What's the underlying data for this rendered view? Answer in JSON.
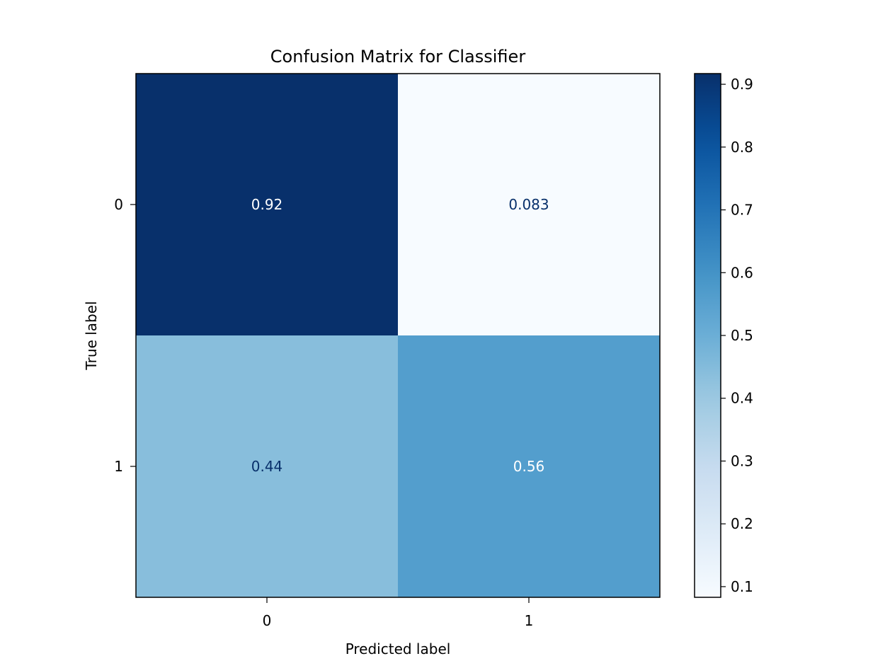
{
  "chart_data": {
    "type": "heatmap",
    "title": "Confusion Matrix for Classifier",
    "xlabel": "Predicted label",
    "ylabel": "True label",
    "x_categories": [
      "0",
      "1"
    ],
    "y_categories": [
      "0",
      "1"
    ],
    "values": [
      [
        0.92,
        0.083
      ],
      [
        0.44,
        0.56
      ]
    ],
    "cell_labels": [
      [
        "0.92",
        "0.083"
      ],
      [
        "0.44",
        "0.56"
      ]
    ],
    "colormap": "Blues",
    "colorbar": {
      "range": [
        0.083,
        0.917
      ],
      "ticks": [
        0.1,
        0.2,
        0.3,
        0.4,
        0.5,
        0.6,
        0.7,
        0.8,
        0.9
      ],
      "tick_labels": [
        "0.1",
        "0.2",
        "0.3",
        "0.4",
        "0.5",
        "0.6",
        "0.7",
        "0.8",
        "0.9"
      ]
    },
    "grid": false
  }
}
